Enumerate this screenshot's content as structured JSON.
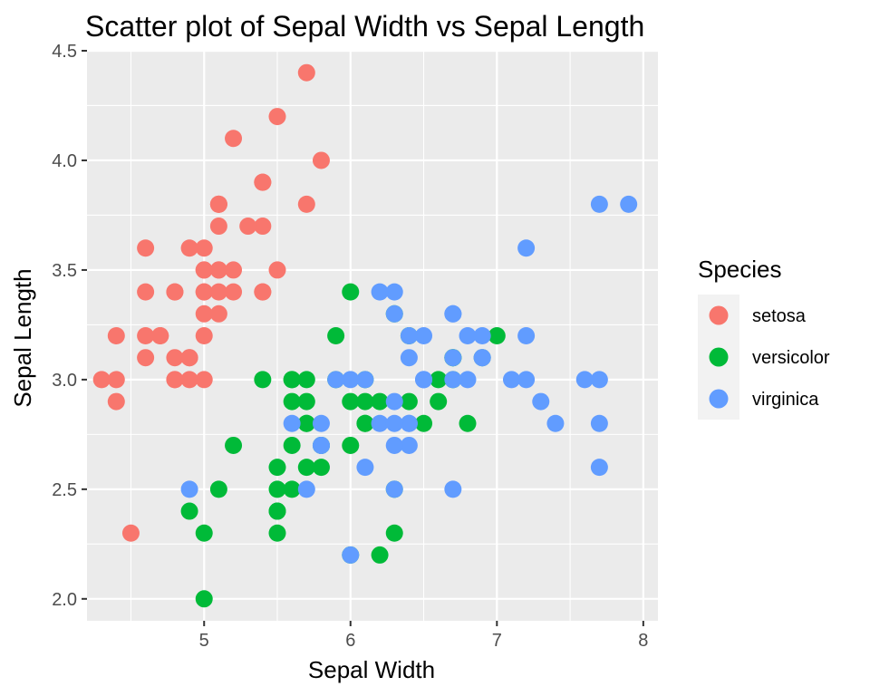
{
  "chart_data": {
    "type": "scatter",
    "title": "Scatter plot of Sepal Width vs Sepal Length",
    "xlabel": "Sepal Width",
    "ylabel": "Sepal Length",
    "xlim": [
      4.2,
      8.1
    ],
    "ylim": [
      1.9,
      4.5
    ],
    "x_ticks": [
      5,
      6,
      7,
      8
    ],
    "x_tick_labels": [
      "5",
      "6",
      "7",
      "8"
    ],
    "y_ticks": [
      2.0,
      2.5,
      3.0,
      3.5,
      4.0,
      4.5
    ],
    "y_tick_labels": [
      "2.0",
      "2.5",
      "3.0",
      "3.5",
      "4.0",
      "4.5"
    ],
    "grid": true,
    "legend": {
      "title": "Species",
      "position": "right"
    },
    "series": [
      {
        "name": "setosa",
        "color": "#f8766d",
        "points": [
          [
            5.1,
            3.5
          ],
          [
            4.9,
            3.0
          ],
          [
            4.7,
            3.2
          ],
          [
            4.6,
            3.1
          ],
          [
            5.0,
            3.6
          ],
          [
            5.4,
            3.9
          ],
          [
            4.6,
            3.4
          ],
          [
            5.0,
            3.4
          ],
          [
            4.4,
            2.9
          ],
          [
            4.9,
            3.1
          ],
          [
            5.4,
            3.7
          ],
          [
            4.8,
            3.4
          ],
          [
            4.8,
            3.0
          ],
          [
            4.3,
            3.0
          ],
          [
            5.8,
            4.0
          ],
          [
            5.7,
            4.4
          ],
          [
            5.4,
            3.9
          ],
          [
            5.1,
            3.5
          ],
          [
            5.7,
            3.8
          ],
          [
            5.1,
            3.8
          ],
          [
            5.4,
            3.4
          ],
          [
            5.1,
            3.7
          ],
          [
            4.6,
            3.6
          ],
          [
            5.1,
            3.3
          ],
          [
            4.8,
            3.4
          ],
          [
            5.0,
            3.0
          ],
          [
            5.0,
            3.4
          ],
          [
            5.2,
            3.5
          ],
          [
            5.2,
            3.4
          ],
          [
            4.7,
            3.2
          ],
          [
            4.8,
            3.1
          ],
          [
            5.4,
            3.4
          ],
          [
            5.2,
            4.1
          ],
          [
            5.5,
            4.2
          ],
          [
            4.9,
            3.1
          ],
          [
            5.0,
            3.2
          ],
          [
            5.5,
            3.5
          ],
          [
            4.9,
            3.6
          ],
          [
            4.4,
            3.0
          ],
          [
            5.1,
            3.4
          ],
          [
            5.0,
            3.5
          ],
          [
            4.5,
            2.3
          ],
          [
            4.4,
            3.2
          ],
          [
            5.0,
            3.5
          ],
          [
            5.1,
            3.8
          ],
          [
            4.8,
            3.0
          ],
          [
            5.1,
            3.8
          ],
          [
            4.6,
            3.2
          ],
          [
            5.3,
            3.7
          ],
          [
            5.0,
            3.3
          ]
        ]
      },
      {
        "name": "versicolor",
        "color": "#00ba38",
        "points": [
          [
            7.0,
            3.2
          ],
          [
            6.4,
            3.2
          ],
          [
            6.9,
            3.1
          ],
          [
            5.5,
            2.3
          ],
          [
            6.5,
            2.8
          ],
          [
            5.7,
            2.8
          ],
          [
            6.3,
            3.3
          ],
          [
            4.9,
            2.4
          ],
          [
            6.6,
            2.9
          ],
          [
            5.2,
            2.7
          ],
          [
            5.0,
            2.0
          ],
          [
            5.9,
            3.0
          ],
          [
            6.0,
            2.2
          ],
          [
            6.1,
            2.9
          ],
          [
            5.6,
            2.9
          ],
          [
            6.7,
            3.1
          ],
          [
            5.6,
            3.0
          ],
          [
            5.8,
            2.7
          ],
          [
            6.2,
            2.2
          ],
          [
            5.6,
            2.5
          ],
          [
            5.9,
            3.2
          ],
          [
            6.1,
            2.8
          ],
          [
            6.3,
            2.5
          ],
          [
            6.1,
            2.8
          ],
          [
            6.4,
            2.9
          ],
          [
            6.6,
            3.0
          ],
          [
            6.8,
            2.8
          ],
          [
            6.7,
            3.0
          ],
          [
            6.0,
            2.9
          ],
          [
            5.7,
            2.6
          ],
          [
            5.5,
            2.4
          ],
          [
            5.5,
            2.4
          ],
          [
            5.8,
            2.7
          ],
          [
            6.0,
            2.7
          ],
          [
            5.4,
            3.0
          ],
          [
            6.0,
            3.4
          ],
          [
            6.7,
            3.1
          ],
          [
            6.3,
            2.3
          ],
          [
            5.6,
            3.0
          ],
          [
            5.5,
            2.5
          ],
          [
            5.5,
            2.6
          ],
          [
            6.1,
            3.0
          ],
          [
            5.8,
            2.6
          ],
          [
            5.0,
            2.3
          ],
          [
            5.6,
            2.7
          ],
          [
            5.7,
            3.0
          ],
          [
            5.7,
            2.9
          ],
          [
            6.2,
            2.9
          ],
          [
            5.1,
            2.5
          ],
          [
            5.7,
            2.8
          ]
        ]
      },
      {
        "name": "virginica",
        "color": "#619cff",
        "points": [
          [
            6.3,
            3.3
          ],
          [
            5.8,
            2.7
          ],
          [
            7.1,
            3.0
          ],
          [
            6.3,
            2.9
          ],
          [
            6.5,
            3.0
          ],
          [
            7.6,
            3.0
          ],
          [
            4.9,
            2.5
          ],
          [
            7.3,
            2.9
          ],
          [
            6.7,
            2.5
          ],
          [
            7.2,
            3.6
          ],
          [
            6.5,
            3.2
          ],
          [
            6.4,
            2.7
          ],
          [
            6.8,
            3.0
          ],
          [
            5.7,
            2.5
          ],
          [
            5.8,
            2.8
          ],
          [
            6.4,
            3.2
          ],
          [
            6.5,
            3.0
          ],
          [
            7.7,
            3.8
          ],
          [
            7.7,
            2.6
          ],
          [
            6.0,
            2.2
          ],
          [
            6.9,
            3.2
          ],
          [
            5.6,
            2.8
          ],
          [
            7.7,
            2.8
          ],
          [
            6.3,
            2.7
          ],
          [
            6.7,
            3.3
          ],
          [
            7.2,
            3.2
          ],
          [
            6.2,
            2.8
          ],
          [
            6.1,
            3.0
          ],
          [
            6.4,
            2.8
          ],
          [
            7.2,
            3.0
          ],
          [
            7.4,
            2.8
          ],
          [
            7.9,
            3.8
          ],
          [
            6.4,
            2.8
          ],
          [
            6.3,
            2.8
          ],
          [
            6.1,
            2.6
          ],
          [
            7.7,
            3.0
          ],
          [
            6.3,
            3.4
          ],
          [
            6.4,
            3.1
          ],
          [
            6.0,
            3.0
          ],
          [
            6.9,
            3.1
          ],
          [
            6.7,
            3.1
          ],
          [
            6.9,
            3.1
          ],
          [
            5.8,
            2.7
          ],
          [
            6.8,
            3.2
          ],
          [
            6.7,
            3.3
          ],
          [
            6.7,
            3.0
          ],
          [
            6.3,
            2.5
          ],
          [
            6.5,
            3.0
          ],
          [
            6.2,
            3.4
          ],
          [
            5.9,
            3.0
          ]
        ]
      }
    ]
  }
}
